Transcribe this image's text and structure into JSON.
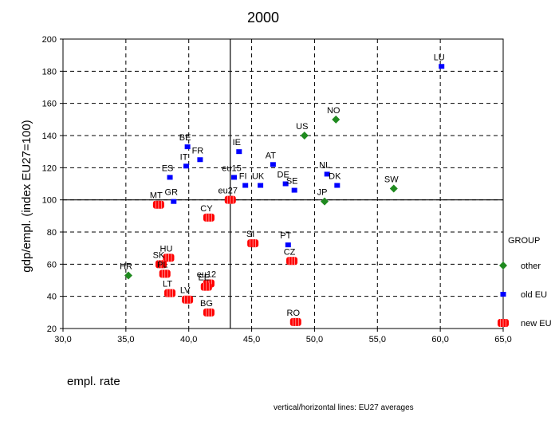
{
  "chart_data": {
    "type": "scatter",
    "title": "2000",
    "xlabel": "empl. rate",
    "ylabel": "gdp/empl. (index EU27=100)",
    "xlim": [
      30,
      65
    ],
    "ylim": [
      20,
      200
    ],
    "xticks": [
      "30,0",
      "35,0",
      "40,0",
      "45,0",
      "50,0",
      "55,0",
      "60,0",
      "65,0"
    ],
    "yticks": [
      "20",
      "40",
      "60",
      "80",
      "100",
      "120",
      "140",
      "160",
      "180",
      "200"
    ],
    "grid": true,
    "reference_lines": {
      "x": 43.3,
      "y": 100
    },
    "legend": {
      "title": "GROUP",
      "position": "right",
      "items": [
        {
          "name": "other",
          "color": "#1f8a1f",
          "marker": "diamond"
        },
        {
          "name": "old EU",
          "color": "#0000ff",
          "marker": "square"
        },
        {
          "name": "new EU",
          "color": "#ff0000",
          "marker": "rounded-square"
        }
      ]
    },
    "series": [
      {
        "name": "other",
        "points": [
          {
            "label": "NO",
            "x": 51.7,
            "y": 150
          },
          {
            "label": "US",
            "x": 49.2,
            "y": 140
          },
          {
            "label": "SW",
            "x": 56.3,
            "y": 107
          },
          {
            "label": "JP",
            "x": 50.8,
            "y": 99
          },
          {
            "label": "HR",
            "x": 35.2,
            "y": 53
          }
        ]
      },
      {
        "name": "old EU",
        "points": [
          {
            "label": "LU",
            "x": 60.1,
            "y": 183
          },
          {
            "label": "BE",
            "x": 39.9,
            "y": 133
          },
          {
            "label": "FR",
            "x": 40.9,
            "y": 125
          },
          {
            "label": "IT",
            "x": 39.8,
            "y": 121
          },
          {
            "label": "ES",
            "x": 38.5,
            "y": 114
          },
          {
            "label": "IE",
            "x": 44.0,
            "y": 130
          },
          {
            "label": "AT",
            "x": 46.7,
            "y": 122
          },
          {
            "label": "eu15",
            "x": 43.6,
            "y": 114
          },
          {
            "label": "FI",
            "x": 44.5,
            "y": 109
          },
          {
            "label": "UK",
            "x": 45.7,
            "y": 109
          },
          {
            "label": "DE",
            "x": 47.7,
            "y": 110
          },
          {
            "label": "SE",
            "x": 48.4,
            "y": 106
          },
          {
            "label": "NL",
            "x": 51.0,
            "y": 116
          },
          {
            "label": "DK",
            "x": 51.8,
            "y": 109
          },
          {
            "label": "GR",
            "x": 38.8,
            "y": 99
          },
          {
            "label": "PT",
            "x": 47.9,
            "y": 72
          }
        ]
      },
      {
        "name": "new EU",
        "points": [
          {
            "label": "eu27",
            "x": 43.3,
            "y": 100
          },
          {
            "label": "MT",
            "x": 37.6,
            "y": 97
          },
          {
            "label": "CY",
            "x": 41.6,
            "y": 89
          },
          {
            "label": "SI",
            "x": 45.1,
            "y": 73
          },
          {
            "label": "CZ",
            "x": 48.2,
            "y": 62
          },
          {
            "label": "HU",
            "x": 38.4,
            "y": 64
          },
          {
            "label": "SK",
            "x": 37.8,
            "y": 60
          },
          {
            "label": "PL",
            "x": 38.1,
            "y": 54
          },
          {
            "label": "LT",
            "x": 38.5,
            "y": 42
          },
          {
            "label": "LV",
            "x": 39.9,
            "y": 38
          },
          {
            "label": "eu12",
            "x": 41.6,
            "y": 48
          },
          {
            "label": "EE",
            "x": 41.4,
            "y": 46
          },
          {
            "label": "BG",
            "x": 41.6,
            "y": 30
          },
          {
            "label": "RO",
            "x": 48.5,
            "y": 24
          }
        ]
      }
    ],
    "note": "vertical/horizontal lines: EU27 averages"
  }
}
